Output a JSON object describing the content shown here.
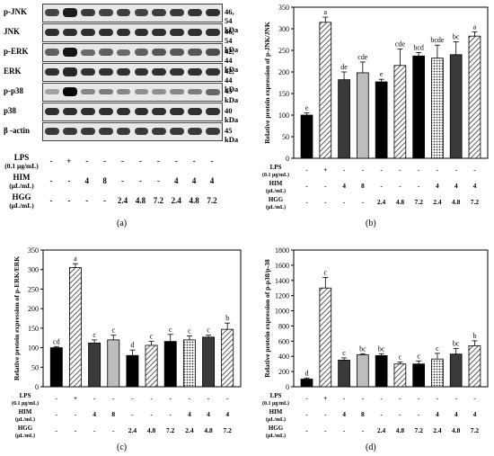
{
  "blot": {
    "rows": [
      {
        "label": "p-JNK",
        "kda": "46, 54 kDa",
        "intensity": [
          0.7,
          0.9,
          0.75,
          0.7,
          0.72,
          0.7,
          0.72,
          0.75,
          0.78,
          0.8
        ]
      },
      {
        "label": "JNK",
        "kda": "46, 54 kDa",
        "intensity": [
          0.8,
          0.8,
          0.8,
          0.8,
          0.8,
          0.8,
          0.8,
          0.8,
          0.8,
          0.8
        ]
      },
      {
        "label": "p-ERK",
        "kda": "42, 44 kDa",
        "intensity": [
          0.55,
          0.95,
          0.5,
          0.55,
          0.5,
          0.55,
          0.6,
          0.6,
          0.6,
          0.65
        ]
      },
      {
        "label": "ERK",
        "kda": "42, 44 kDa",
        "intensity": [
          0.8,
          0.85,
          0.8,
          0.8,
          0.8,
          0.8,
          0.8,
          0.8,
          0.8,
          0.8
        ]
      },
      {
        "label": "p-p38",
        "kda": "43 kDa",
        "intensity": [
          0.2,
          1.0,
          0.35,
          0.4,
          0.35,
          0.3,
          0.3,
          0.35,
          0.4,
          0.5
        ]
      },
      {
        "label": "p38",
        "kda": "40 kDa",
        "intensity": [
          0.8,
          0.8,
          0.8,
          0.8,
          0.8,
          0.8,
          0.8,
          0.8,
          0.8,
          0.8
        ]
      },
      {
        "label": "β -actin",
        "kda": "45 kDa",
        "intensity": [
          0.75,
          0.75,
          0.75,
          0.75,
          0.75,
          0.75,
          0.75,
          0.75,
          0.75,
          0.75
        ]
      }
    ]
  },
  "treatments": {
    "lps_label": [
      "LPS",
      "(0.1 μg/mL)"
    ],
    "him_label": [
      "HIM",
      "(μL/mL)"
    ],
    "hgg_label": [
      "HGG",
      "(μL/mL)"
    ],
    "lps": [
      "-",
      "+",
      "-",
      "-",
      "-",
      "-",
      "-",
      "-",
      "-",
      "-"
    ],
    "him": [
      "-",
      "-",
      "4",
      "8",
      "-",
      "-",
      "-",
      "4",
      "4",
      "4"
    ],
    "hgg": [
      "-",
      "-",
      "-",
      "-",
      "2.4",
      "4.8",
      "7.2",
      "2.4",
      "4.8",
      "7.2"
    ]
  },
  "chart_data": [
    {
      "panel": "b",
      "type": "bar",
      "ylabel": "Relative protein expression of p-JNK/JNK",
      "ylim": [
        0,
        350
      ],
      "yticks": [
        0,
        50,
        100,
        150,
        200,
        250,
        300,
        350
      ],
      "values": [
        100,
        315,
        182,
        198,
        177,
        215,
        237,
        232,
        240,
        283
      ],
      "errors": [
        5,
        12,
        18,
        25,
        6,
        38,
        8,
        30,
        30,
        10
      ],
      "letters": [
        "e",
        "a",
        "de",
        "cde",
        "e",
        "cde",
        "bcd",
        "bcde",
        "bc",
        "a"
      ],
      "styles": [
        "solid",
        "hatch",
        "dark",
        "light",
        "solid",
        "hatch",
        "solid",
        "dots",
        "dark",
        "hatch"
      ]
    },
    {
      "panel": "c",
      "type": "bar",
      "ylabel": "Relative protein expression of p-ERK/ERK",
      "ylim": [
        0,
        350
      ],
      "yticks": [
        0,
        50,
        100,
        150,
        200,
        250,
        300,
        350
      ],
      "values": [
        100,
        305,
        112,
        120,
        80,
        106,
        116,
        120,
        127,
        147
      ],
      "errors": [
        3,
        10,
        8,
        12,
        14,
        10,
        18,
        10,
        5,
        16
      ],
      "letters": [
        "cd",
        "a",
        "c",
        "c",
        "d",
        "c",
        "c",
        "c",
        "c",
        "b"
      ],
      "styles": [
        "solid",
        "hatch",
        "dark",
        "light",
        "solid",
        "hatch",
        "solid",
        "dots",
        "dark",
        "hatch"
      ]
    },
    {
      "panel": "d",
      "type": "bar",
      "ylabel": "Relative protein expression of p-p38/p-38",
      "ylim": [
        0,
        1800
      ],
      "yticks": [
        0,
        200,
        400,
        600,
        800,
        1000,
        1200,
        1400,
        1600,
        1800
      ],
      "values": [
        100,
        1300,
        350,
        420,
        410,
        300,
        300,
        365,
        430,
        540
      ],
      "errors": [
        15,
        140,
        30,
        15,
        25,
        25,
        40,
        75,
        75,
        65
      ],
      "letters": [
        "d",
        "c",
        "c",
        "bc",
        "bc",
        "c",
        "c",
        "c",
        "bc",
        "b"
      ],
      "styles": [
        "solid",
        "hatch",
        "dark",
        "light",
        "solid",
        "hatch",
        "solid",
        "dots",
        "dark",
        "hatch"
      ]
    }
  ],
  "captions": {
    "a": "(a)",
    "b": "(b)",
    "c": "(c)",
    "d": "(d)"
  }
}
